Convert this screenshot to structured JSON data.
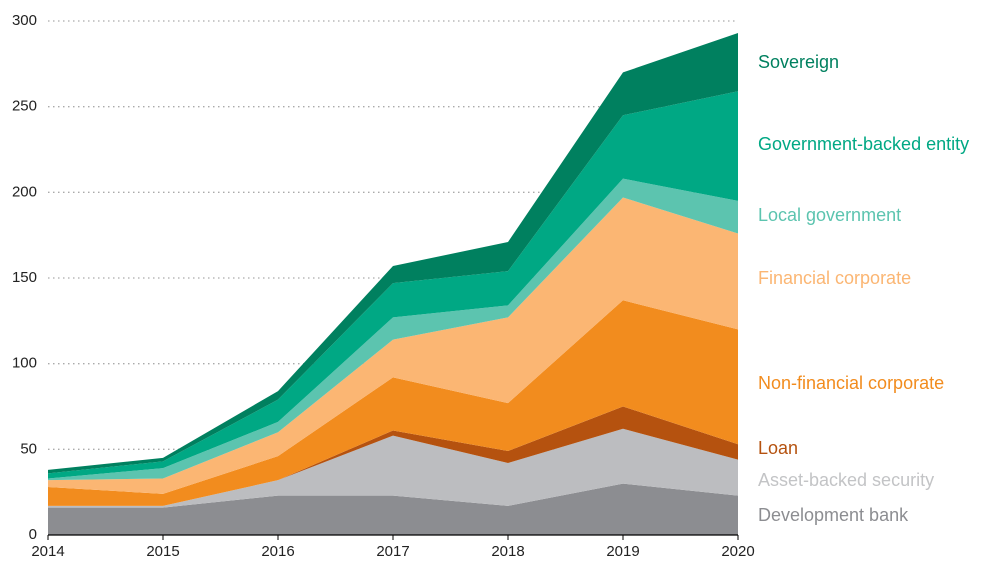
{
  "chart_data": {
    "type": "stacked_area",
    "x": [
      2014,
      2015,
      2016,
      2017,
      2018,
      2019,
      2020
    ],
    "xlim": [
      2014,
      2020
    ],
    "xticks": [
      2014,
      2015,
      2016,
      2017,
      2018,
      2019,
      2020
    ],
    "ylim": [
      0,
      300
    ],
    "yticks": [
      0,
      50,
      100,
      150,
      200,
      250,
      300
    ],
    "grid": true,
    "series": [
      {
        "name": "Development bank",
        "color": "#8c8d91",
        "values": [
          16,
          16,
          23,
          23,
          17,
          30,
          23
        ]
      },
      {
        "name": "Asset-backed security",
        "color": "#bcbdc0",
        "values": [
          1,
          1,
          9,
          35,
          25,
          32,
          21
        ]
      },
      {
        "name": "Loan",
        "color": "#b5520f",
        "values": [
          0,
          0,
          0,
          3,
          7,
          13,
          9
        ]
      },
      {
        "name": "Non-financial corporate",
        "color": "#f28c1e",
        "values": [
          11,
          7,
          14,
          31,
          28,
          62,
          67
        ]
      },
      {
        "name": "Financial corporate",
        "color": "#fbb673",
        "values": [
          4,
          9,
          14,
          22,
          50,
          60,
          56
        ]
      },
      {
        "name": "Local government",
        "color": "#5cc4af",
        "values": [
          1,
          6,
          6,
          13,
          7,
          11,
          19
        ]
      },
      {
        "name": "Government-backed entity",
        "color": "#00a884",
        "values": [
          3,
          4,
          13,
          20,
          20,
          37,
          64
        ]
      },
      {
        "name": "Sovereign",
        "color": "#00805f",
        "values": [
          2,
          2,
          5,
          10,
          17,
          25,
          34
        ]
      }
    ]
  }
}
